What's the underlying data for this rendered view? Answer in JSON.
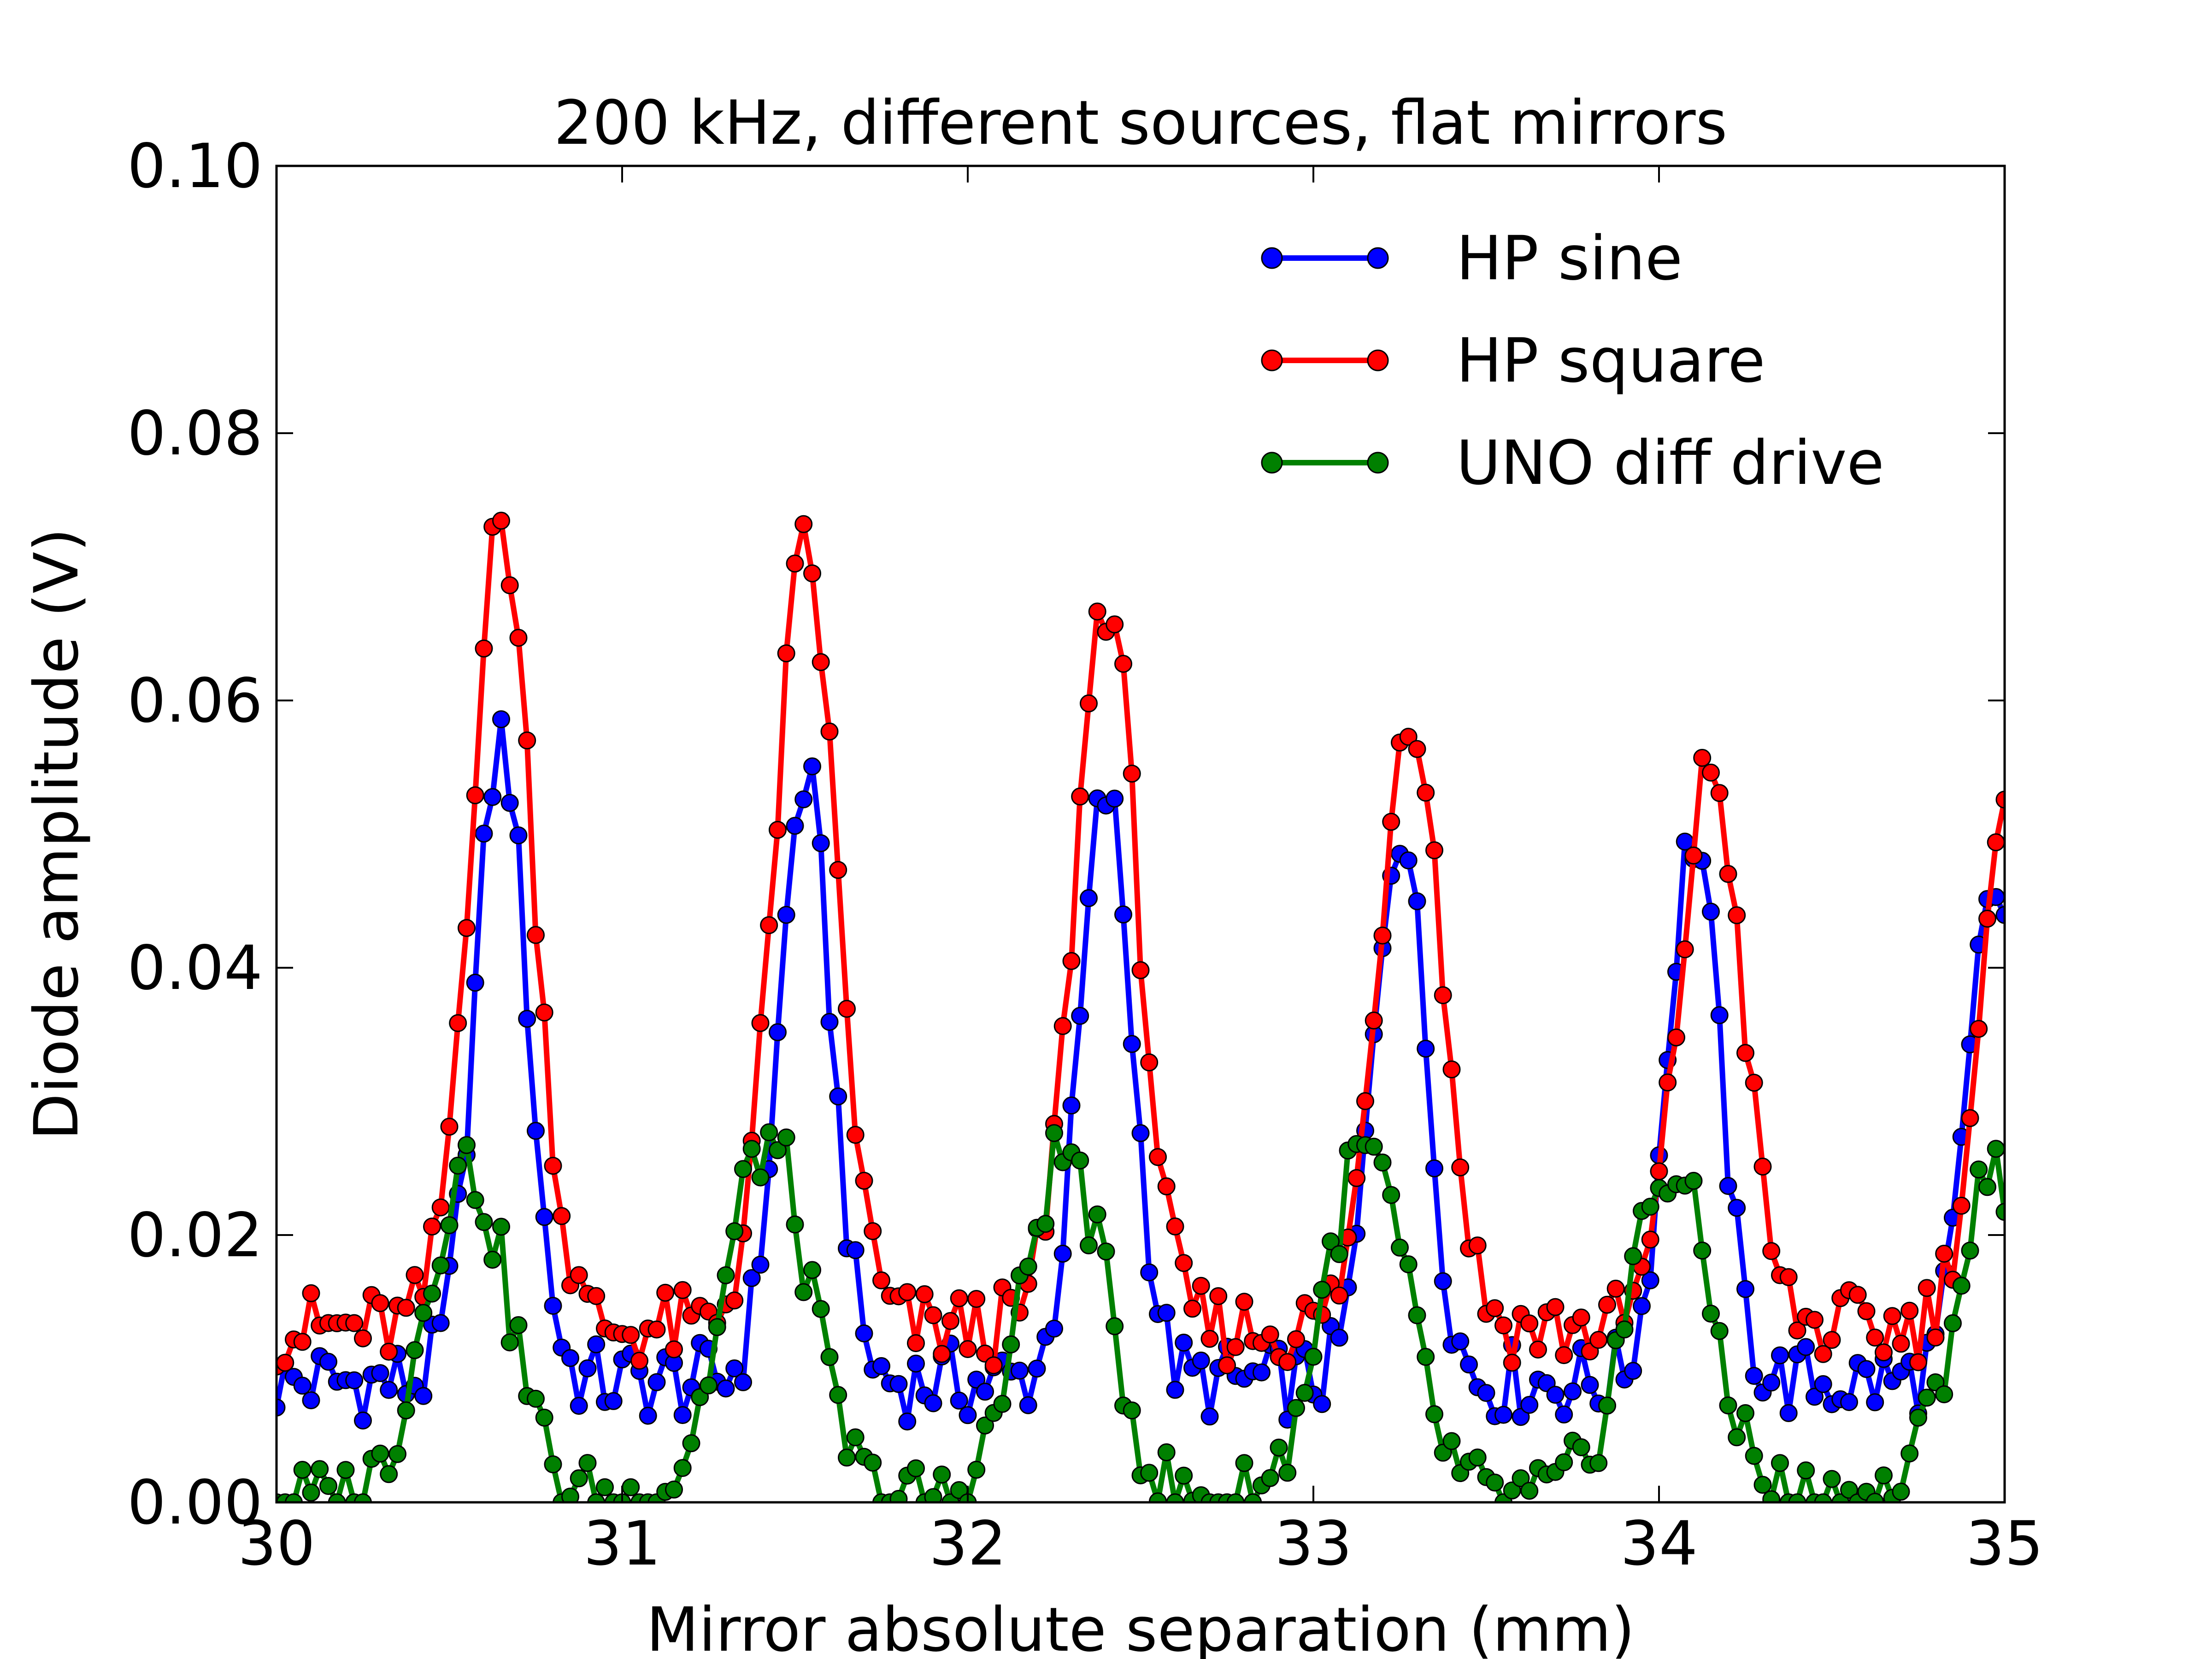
{
  "chart_data": {
    "type": "line",
    "title": "200 kHz, different sources, flat mirrors",
    "xlabel": "Mirror absolute separation (mm)",
    "ylabel": "Diode amplitude (V)",
    "xlim": [
      30,
      35
    ],
    "ylim": [
      0,
      0.1
    ],
    "xticks": [
      30,
      31,
      32,
      33,
      34,
      35
    ],
    "xtick_labels": [
      "30",
      "31",
      "32",
      "33",
      "34",
      "35"
    ],
    "yticks": [
      0,
      0.02,
      0.04,
      0.06,
      0.08,
      0.1
    ],
    "ytick_labels": [
      "0.00",
      "0.02",
      "0.04",
      "0.06",
      "0.08",
      "0.10"
    ],
    "grid": false,
    "legend_position": "top-right",
    "markers": "circle",
    "x_spacing": 0.025,
    "series": [
      {
        "name": "HP sine",
        "color": "#0000ff",
        "peaks": [
          {
            "center": 30.65,
            "height": 0.057
          },
          {
            "center": 31.53,
            "height": 0.054
          },
          {
            "center": 32.4,
            "height": 0.053
          },
          {
            "center": 33.25,
            "height": 0.051
          },
          {
            "center": 34.1,
            "height": 0.05
          },
          {
            "center": 34.97,
            "height": 0.046
          }
        ],
        "baseline": 0.009,
        "peak_width": 0.075
      },
      {
        "name": "HP square",
        "color": "#ff0000",
        "peaks": [
          {
            "center": 30.65,
            "height": 0.073
          },
          {
            "center": 31.53,
            "height": 0.071
          },
          {
            "center": 32.4,
            "height": 0.068
          },
          {
            "center": 33.28,
            "height": 0.06
          },
          {
            "center": 34.15,
            "height": 0.055
          },
          {
            "center": 35.02,
            "height": 0.052
          }
        ],
        "baseline": 0.013,
        "peak_width": 0.09
      },
      {
        "name": "UNO diff drive",
        "color": "#008000",
        "peaks": [
          {
            "center": 30.55,
            "height": 0.025
          },
          {
            "center": 31.42,
            "height": 0.027
          },
          {
            "center": 32.28,
            "height": 0.026
          },
          {
            "center": 33.15,
            "height": 0.026
          },
          {
            "center": 34.03,
            "height": 0.025
          },
          {
            "center": 34.98,
            "height": 0.025
          }
        ],
        "baseline": 0.0,
        "peak_width": 0.12
      }
    ]
  }
}
